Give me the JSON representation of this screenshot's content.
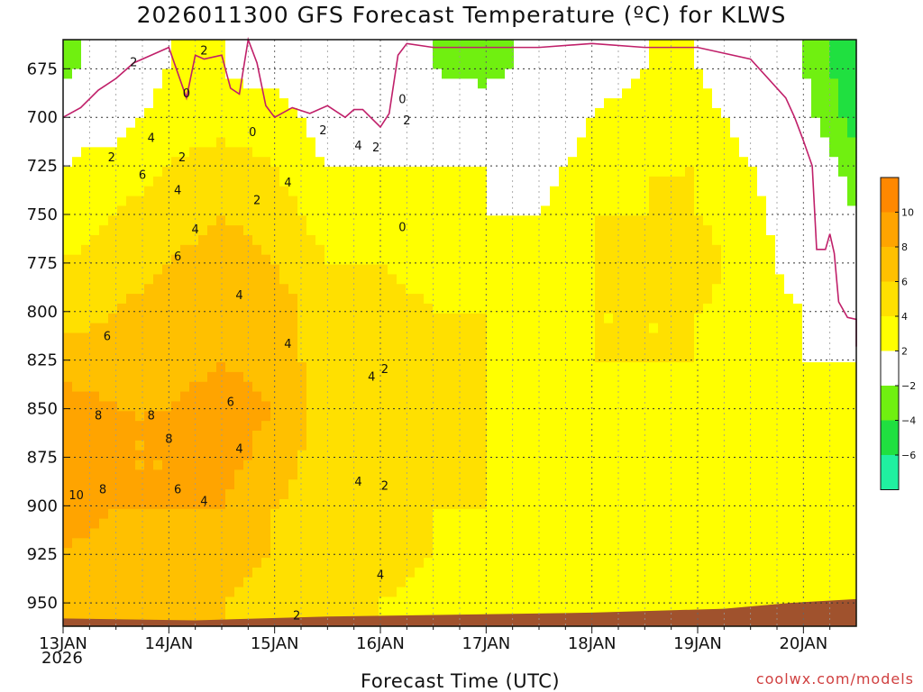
{
  "chart_data": {
    "type": "heatmap",
    "title": "2026011300 GFS Forecast Temperature (ºC) for KLWS",
    "xlabel": "Forecast Time (UTC)",
    "ylabel": "",
    "x_ticks": [
      "13JAN",
      "14JAN",
      "15JAN",
      "16JAN",
      "17JAN",
      "18JAN",
      "19JAN",
      "20JAN"
    ],
    "x_start_year": "2026",
    "y_ticks": [
      675,
      700,
      725,
      750,
      775,
      800,
      825,
      850,
      875,
      900,
      925,
      950
    ],
    "y_range": [
      962,
      660
    ],
    "x_range_hours": [
      0,
      180
    ],
    "colorbar": {
      "bins": [
        {
          "low": -8,
          "high": -6,
          "color": "#20f0a0"
        },
        {
          "low": -6,
          "high": -4,
          "color": "#20e040"
        },
        {
          "low": -4,
          "high": -2,
          "color": "#70f010"
        },
        {
          "low": -2,
          "high": 2,
          "color": "#ffffff"
        },
        {
          "low": 2,
          "high": 4,
          "color": "#ffff00"
        },
        {
          "low": 4,
          "high": 6,
          "color": "#ffe000"
        },
        {
          "low": 6,
          "high": 8,
          "color": "#ffc000"
        },
        {
          "low": 8,
          "high": 10,
          "color": "#ffa400"
        },
        {
          "low": 10,
          "high": 12,
          "color": "#ff8800"
        }
      ],
      "labels": [
        "10",
        "8",
        "6",
        "4",
        "2",
        "−2",
        "−4",
        "−6"
      ]
    },
    "time_hours": [
      0,
      12,
      24,
      36,
      48,
      60,
      72,
      84,
      96,
      108,
      120,
      132,
      144,
      156,
      168,
      180
    ],
    "levels_hPa": [
      675,
      700,
      725,
      750,
      775,
      800,
      825,
      850,
      875,
      900,
      925,
      950
    ],
    "temperature_c": [
      [
        -3,
        0,
        2,
        2,
        1,
        -1,
        -1,
        -2,
        -3,
        -1,
        1,
        2,
        2,
        0,
        -2,
        -6
      ],
      [
        1,
        1,
        3,
        3,
        3,
        1,
        1,
        0,
        0,
        -1,
        2,
        3,
        3,
        1,
        -1,
        -5
      ],
      [
        2,
        3,
        4,
        5,
        4,
        2,
        2,
        2,
        2,
        1,
        3,
        4,
        4,
        2,
        0,
        -3
      ],
      [
        3,
        4,
        5,
        6,
        5,
        3,
        3,
        3,
        2,
        2,
        4,
        4,
        4,
        3,
        0,
        -2
      ],
      [
        4,
        5,
        6,
        7,
        6,
        4,
        4,
        3,
        3,
        3,
        4,
        5,
        5,
        3,
        1,
        -1
      ],
      [
        5,
        6,
        7,
        7,
        7,
        5,
        5,
        4,
        4,
        3,
        4,
        4,
        4,
        3,
        2,
        1
      ],
      [
        7,
        7,
        7,
        8,
        7,
        5,
        6,
        5,
        4,
        3,
        4,
        4,
        4,
        3,
        2,
        2
      ],
      [
        9,
        8,
        8,
        9,
        8,
        5,
        6,
        6,
        4,
        3,
        4,
        3,
        4,
        3,
        3,
        2
      ],
      [
        10,
        8,
        8,
        9,
        7,
        5,
        6,
        5,
        4,
        3,
        4,
        3,
        4,
        3,
        3,
        2
      ],
      [
        9,
        8,
        8,
        8,
        6,
        5,
        5,
        4,
        4,
        3,
        3,
        4,
        4,
        3,
        3,
        3
      ],
      [
        8,
        7,
        7,
        7,
        6,
        5,
        5,
        4,
        3,
        2,
        3,
        4,
        3,
        2,
        4,
        3
      ],
      [
        7,
        6,
        6,
        6,
        5,
        4,
        4,
        3,
        2,
        3,
        2,
        3,
        3,
        3,
        4,
        3
      ]
    ],
    "zero_line": [
      [
        0,
        700
      ],
      [
        4,
        695
      ],
      [
        8,
        686
      ],
      [
        12,
        680
      ],
      [
        16,
        672
      ],
      [
        20,
        668
      ],
      [
        24,
        664
      ],
      [
        28,
        690
      ],
      [
        30,
        668
      ],
      [
        32,
        670
      ],
      [
        36,
        668
      ],
      [
        38,
        685
      ],
      [
        40,
        688
      ],
      [
        42,
        660
      ],
      [
        44,
        672
      ],
      [
        46,
        694
      ],
      [
        48,
        700
      ],
      [
        52,
        695
      ],
      [
        56,
        698
      ],
      [
        60,
        694
      ],
      [
        64,
        700
      ],
      [
        66,
        696
      ],
      [
        68,
        696
      ],
      [
        72,
        705
      ],
      [
        74,
        698
      ],
      [
        76,
        668
      ],
      [
        78,
        662
      ],
      [
        84,
        664
      ],
      [
        96,
        664
      ],
      [
        108,
        664
      ],
      [
        120,
        662
      ],
      [
        132,
        664
      ],
      [
        144,
        664
      ],
      [
        156,
        670
      ],
      [
        164,
        690
      ],
      [
        166,
        700
      ],
      [
        168,
        712
      ],
      [
        170,
        725
      ],
      [
        171,
        768
      ],
      [
        173,
        768
      ],
      [
        174,
        760
      ],
      [
        175,
        770
      ],
      [
        176,
        795
      ],
      [
        178,
        803
      ],
      [
        180,
        804
      ],
      [
        180,
        818
      ]
    ],
    "contour_labels": [
      {
        "text": "2",
        "x": 16,
        "p": 672
      },
      {
        "text": "0",
        "x": 28,
        "p": 688
      },
      {
        "text": "2",
        "x": 32,
        "p": 666
      },
      {
        "text": "0",
        "x": 43,
        "p": 708
      },
      {
        "text": "2",
        "x": 11,
        "p": 721
      },
      {
        "text": "4",
        "x": 20,
        "p": 711
      },
      {
        "text": "6",
        "x": 18,
        "p": 730
      },
      {
        "text": "2",
        "x": 27,
        "p": 721
      },
      {
        "text": "4",
        "x": 26,
        "p": 738
      },
      {
        "text": "4",
        "x": 30,
        "p": 758
      },
      {
        "text": "6",
        "x": 26,
        "p": 772
      },
      {
        "text": "6",
        "x": 10,
        "p": 813
      },
      {
        "text": "8",
        "x": 8,
        "p": 854
      },
      {
        "text": "8",
        "x": 20,
        "p": 854
      },
      {
        "text": "8",
        "x": 24,
        "p": 866
      },
      {
        "text": "10",
        "x": 3,
        "p": 895
      },
      {
        "text": "8",
        "x": 9,
        "p": 892
      },
      {
        "text": "6",
        "x": 26,
        "p": 892
      },
      {
        "text": "4",
        "x": 32,
        "p": 898
      },
      {
        "text": "6",
        "x": 38,
        "p": 847
      },
      {
        "text": "4",
        "x": 40,
        "p": 792
      },
      {
        "text": "4",
        "x": 40,
        "p": 871
      },
      {
        "text": "2",
        "x": 44,
        "p": 743
      },
      {
        "text": "4",
        "x": 51,
        "p": 734
      },
      {
        "text": "4",
        "x": 51,
        "p": 817
      },
      {
        "text": "2",
        "x": 59,
        "p": 707
      },
      {
        "text": "4",
        "x": 67,
        "p": 715
      },
      {
        "text": "2",
        "x": 71,
        "p": 716
      },
      {
        "text": "4",
        "x": 67,
        "p": 888
      },
      {
        "text": "4",
        "x": 70,
        "p": 834
      },
      {
        "text": "2",
        "x": 73,
        "p": 830
      },
      {
        "text": "0",
        "x": 77,
        "p": 691
      },
      {
        "text": "2",
        "x": 78,
        "p": 702
      },
      {
        "text": "0",
        "x": 77,
        "p": 757
      },
      {
        "text": "2",
        "x": 73,
        "p": 890
      },
      {
        "text": "2",
        "x": 53,
        "p": 957
      },
      {
        "text": "4",
        "x": 72,
        "p": 936
      }
    ]
  }
}
